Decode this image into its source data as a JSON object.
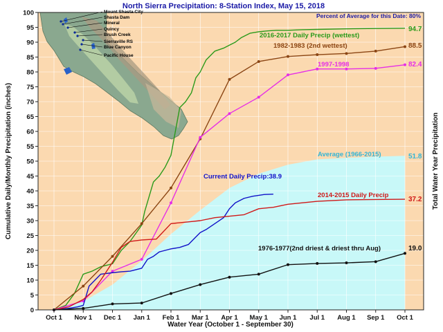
{
  "chart_data": {
    "type": "line",
    "title": "North Sierra Precipitation: 8-Station Index, May 15, 2018",
    "subtitle": "Percent of Average for this Date: 80%",
    "xlabel": "Water Year (October 1 - September 30)",
    "ylabel": "Cumulative Daily/Monthly Precipitation (inches)",
    "ylabel_right": "Total Water Year Precipitation",
    "ylim": [
      0,
      100
    ],
    "yticks": [
      0,
      5,
      10,
      15,
      20,
      25,
      30,
      35,
      40,
      45,
      50,
      55,
      60,
      65,
      70,
      75,
      80,
      85,
      90,
      95,
      100
    ],
    "xticks": [
      "Oct 1",
      "Nov 1",
      "Dec 1",
      "Jan 1",
      "Feb 1",
      "Mar 1",
      "Apr 1",
      "May 1",
      "Jun 1",
      "Jul 1",
      "Aug 1",
      "Sep 1",
      "Oct 1"
    ],
    "grid": true,
    "map": {
      "stations": [
        "Mount Shasta City",
        "Shasta Dam",
        "Mineral",
        "Quincy",
        "Brush Creek",
        "Sierraville RS",
        "Blue Canyon",
        "Pacific House"
      ]
    },
    "series": [
      {
        "name": "Average (1966-2015)",
        "style": "area",
        "color": "#c8f8f8",
        "label_color": "#33b5d6",
        "end_value": "51.8",
        "x": [
          0,
          1,
          2,
          3,
          4,
          5,
          6,
          7,
          8,
          9,
          10,
          11,
          12
        ],
        "values": [
          0,
          2.8,
          8.5,
          16.5,
          25.5,
          33.5,
          41,
          45.8,
          48.8,
          50.6,
          51.1,
          51.5,
          51.8
        ]
      },
      {
        "name": "2016-2017 Daily Precip (wettest)",
        "style": "line",
        "color": "#2a9a1a",
        "end_value": "94.7",
        "x": [
          0,
          0.4,
          0.7,
          1.0,
          1.3,
          1.6,
          2.0,
          2.3,
          2.6,
          3.0,
          3.1,
          3.25,
          3.4,
          3.6,
          3.8,
          4.0,
          4.15,
          4.3,
          4.5,
          4.7,
          4.85,
          5.0,
          5.2,
          5.5,
          5.8,
          6.0,
          6.2,
          6.4,
          6.7,
          7.0,
          7.3,
          7.6,
          8.0,
          8.5,
          9.0,
          10.0,
          11.0,
          12.0
        ],
        "values": [
          0,
          1.5,
          5.5,
          12,
          13,
          14.5,
          15.5,
          20,
          23,
          28.5,
          33,
          38,
          43,
          45,
          48,
          52,
          60,
          68,
          70,
          73,
          78,
          80,
          84,
          87,
          88,
          89,
          90,
          91.5,
          93,
          93.5,
          93.8,
          94,
          94,
          94.2,
          94.3,
          94.5,
          94.6,
          94.7
        ]
      },
      {
        "name": "1982-1983 (2nd wettest)",
        "style": "line",
        "color": "#8b4513",
        "end_value": "88.5",
        "x": [
          0,
          1,
          2,
          3,
          4,
          5,
          6,
          7,
          8,
          9,
          10,
          11,
          12
        ],
        "values": [
          0,
          8,
          18,
          29,
          41,
          57.5,
          77.5,
          83.5,
          85.2,
          85.8,
          86.2,
          87,
          88.5
        ]
      },
      {
        "name": "1997-1998",
        "style": "line",
        "color": "#e62ee6",
        "end_value": "82.4",
        "x": [
          0,
          1,
          2,
          3,
          4,
          5,
          6,
          7,
          8,
          9,
          10,
          11,
          12
        ],
        "values": [
          0,
          3,
          13,
          17,
          36,
          58,
          66,
          71.5,
          79,
          81,
          81,
          81.2,
          82.4
        ]
      },
      {
        "name": "Current Daily Precip:38.9",
        "style": "line",
        "color": "#1010c8",
        "end_value": "",
        "x": [
          0,
          0.5,
          0.8,
          1.0,
          1.2,
          1.4,
          1.6,
          2.0,
          2.3,
          2.6,
          3.0,
          3.2,
          3.4,
          3.6,
          3.8,
          4.0,
          4.3,
          4.6,
          4.8,
          5.0,
          5.2,
          5.5,
          5.8,
          6.0,
          6.2,
          6.5,
          6.8,
          7.0,
          7.2,
          7.5
        ],
        "values": [
          0,
          0.5,
          1.0,
          1.5,
          8,
          10,
          12,
          12.5,
          12.8,
          13,
          14,
          17,
          18,
          19.5,
          20,
          20.5,
          21,
          22,
          24,
          26,
          27,
          29,
          31,
          34,
          36,
          37.5,
          38.2,
          38.5,
          38.8,
          38.9
        ]
      },
      {
        "name": "2014-2015 Daily Precip",
        "style": "line",
        "color": "#d01818",
        "end_value": "37.2",
        "x": [
          0,
          0.5,
          1.0,
          1.3,
          1.6,
          2.0,
          2.3,
          2.6,
          3.0,
          3.5,
          4.0,
          4.5,
          5.0,
          5.5,
          6.0,
          6.5,
          7.0,
          7.5,
          8.0,
          8.5,
          9.0,
          10.0,
          11.0,
          12.0
        ],
        "values": [
          0,
          1,
          3.5,
          6,
          10,
          16,
          21,
          23,
          23.5,
          23.8,
          29,
          29.5,
          30,
          31,
          31.5,
          32,
          34,
          34.5,
          35.5,
          36,
          36.5,
          37,
          37.1,
          37.2
        ]
      },
      {
        "name": "1976-1977(2nd driest & driest thru Aug)",
        "style": "line",
        "color": "#111111",
        "end_value": "19.0",
        "x": [
          0,
          1,
          2,
          3,
          4,
          5,
          6,
          7,
          8,
          9,
          10,
          11,
          12
        ],
        "values": [
          0,
          0.5,
          2,
          2.3,
          5.5,
          8.5,
          11,
          12,
          15.2,
          15.6,
          15.8,
          16.2,
          19.0
        ]
      }
    ]
  }
}
